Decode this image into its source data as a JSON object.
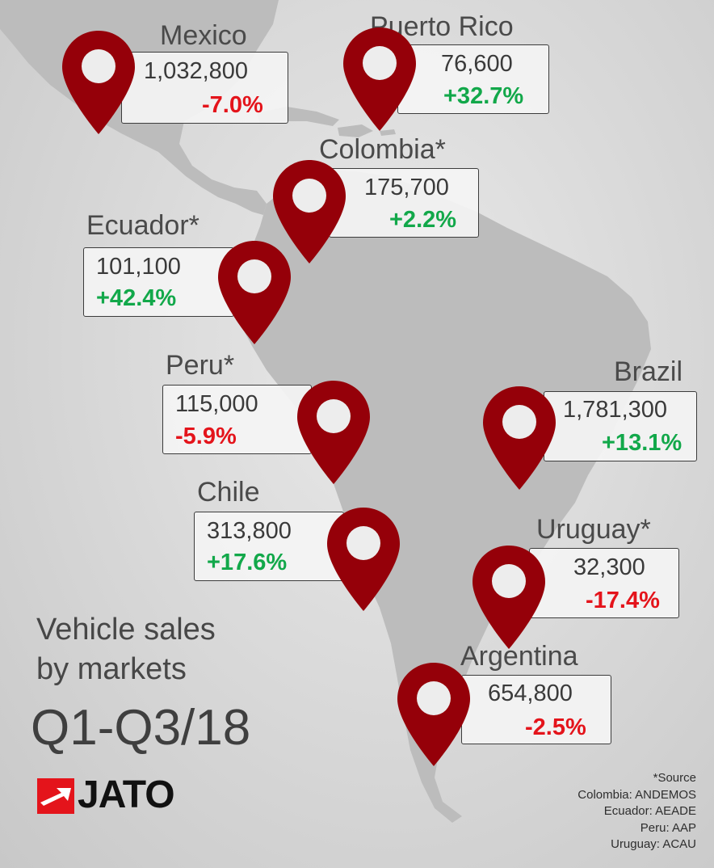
{
  "markets": [
    {
      "id": "mexico",
      "name": "Mexico",
      "sales": "1,032,800",
      "change": "-7.0%",
      "trend": "negative"
    },
    {
      "id": "puerto-rico",
      "name": "Puerto Rico",
      "sales": "76,600",
      "change": "+32.7%",
      "trend": "positive"
    },
    {
      "id": "colombia",
      "name": "Colombia*",
      "sales": "175,700",
      "change": "+2.2%",
      "trend": "positive"
    },
    {
      "id": "ecuador",
      "name": "Ecuador*",
      "sales": "101,100",
      "change": "+42.4%",
      "trend": "positive"
    },
    {
      "id": "peru",
      "name": "Peru*",
      "sales": "115,000",
      "change": "-5.9%",
      "trend": "negative"
    },
    {
      "id": "brazil",
      "name": "Brazil",
      "sales": "1,781,300",
      "change": "+13.1%",
      "trend": "positive"
    },
    {
      "id": "chile",
      "name": "Chile",
      "sales": "313,800",
      "change": "+17.6%",
      "trend": "positive"
    },
    {
      "id": "uruguay",
      "name": "Uruguay*",
      "sales": "32,300",
      "change": "-17.4%",
      "trend": "negative"
    },
    {
      "id": "argentina",
      "name": "Argentina",
      "sales": "654,800",
      "change": "-2.5%",
      "trend": "negative"
    }
  ],
  "title": {
    "line1": "Vehicle sales",
    "line2": "by markets",
    "period": "Q1-Q3/18"
  },
  "brand": {
    "name": "JATO"
  },
  "sources": {
    "heading": "*Source",
    "lines": [
      "Colombia: ANDEMOS",
      "Ecuador: AEADE",
      "Peru: AAP",
      "Uruguay: ACAU"
    ]
  },
  "colors": {
    "pin": "#950009",
    "negative": "#e4141b",
    "positive": "#12a84a",
    "land": "#b9b9b9",
    "logo_red": "#e4141b"
  }
}
